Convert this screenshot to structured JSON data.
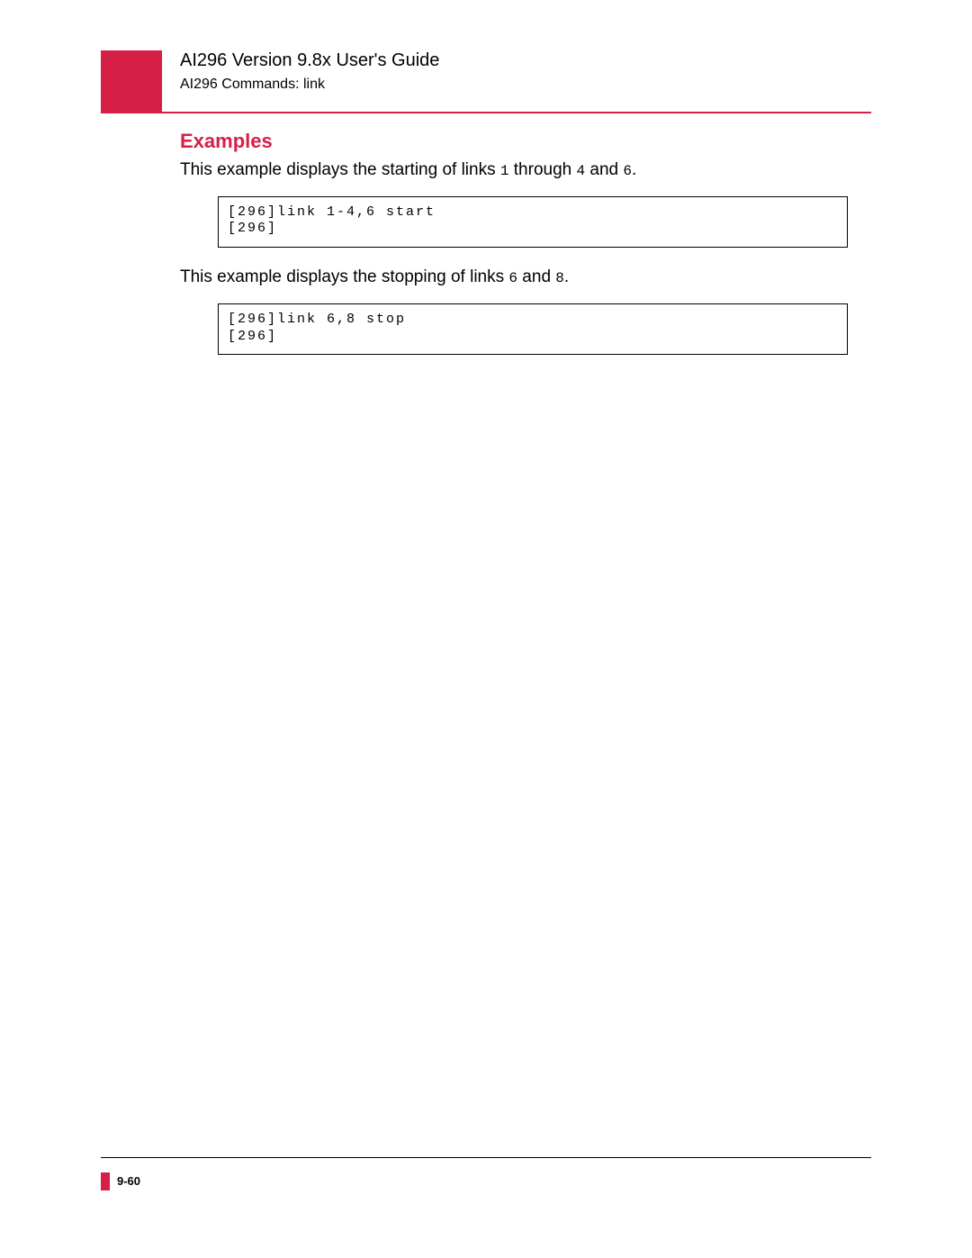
{
  "header": {
    "title": "AI296 Version 9.8x User's Guide",
    "subtitle": "AI296 Commands: link"
  },
  "section": {
    "heading": "Examples",
    "para1_pre": "This example displays the starting of links ",
    "para1_m1": "1",
    "para1_mid1": " through ",
    "para1_m2": "4",
    "para1_mid2": " and ",
    "para1_m3": "6",
    "para1_post": ".",
    "code1": "[296]link 1-4,6 start\n[296]",
    "para2_pre": "This example displays the stopping of links ",
    "para2_m1": "6",
    "para2_mid": " and ",
    "para2_m2": "8",
    "para2_post": ".",
    "code2": "[296]link 6,8 stop\n[296]"
  },
  "footer": {
    "page": "9-60"
  },
  "colors": {
    "accent": "#d61f45",
    "text": "#000000",
    "background": "#ffffff"
  }
}
